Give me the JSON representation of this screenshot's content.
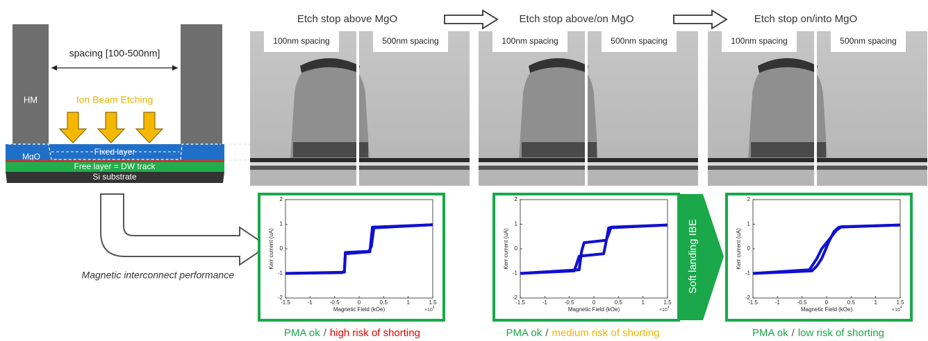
{
  "diagram": {
    "spacing_label": "spacing [100-500nm]",
    "hard_mask": "HM",
    "etch_label": "Ion Beam Etching",
    "fixed_layer": "Fixed layer",
    "mgo": "MgO",
    "free_layer": "Free layer = DW track",
    "substrate": "Si substrate",
    "performance_label": "Magnetic interconnect performance"
  },
  "soft_landing": "Soft landing IBE",
  "columns": [
    {
      "heading": "Etch stop above MgO",
      "images": [
        "100nm spacing",
        "500nm spacing"
      ],
      "plot": {
        "x_label": "Magnetic Field (kOe)",
        "y_label": "Kerr current (uA)",
        "xlim": [
          -1.5,
          1.5
        ],
        "xticks": [
          -1.5,
          -1,
          -0.5,
          0,
          0.5,
          1,
          1.5
        ],
        "ylim": [
          -2,
          2
        ],
        "yticks": [
          -2,
          -1,
          0,
          1,
          2
        ],
        "x_scale": "×10",
        "x_scale_exponent": "4",
        "color": "#1010d0",
        "branches": [
          {
            "x": [
              -1.5,
              -0.35,
              -0.3,
              -0.28,
              0.2,
              0.25,
              0.3,
              1.5
            ],
            "y": [
              -1,
              -0.97,
              -0.9,
              -0.15,
              -0.1,
              0.1,
              0.85,
              0.98
            ]
          },
          {
            "x": [
              -1.5,
              -0.3,
              -0.28,
              0.22,
              0.27,
              1.5
            ],
            "y": [
              -1,
              -0.95,
              -0.2,
              -0.12,
              0.88,
              0.98
            ]
          }
        ]
      },
      "caption": {
        "pma": "PMA ok",
        "separator": "/",
        "risk": "high risk of shorting",
        "risk_color": "#e00000"
      }
    },
    {
      "heading": "Etch stop above/on MgO",
      "images": [
        "100nm spacing",
        "500nm spacing"
      ],
      "plot": {
        "x_label": "Magnetic Field (kOe)",
        "y_label": "Kerr current (uA)",
        "xlim": [
          -1.5,
          1.5
        ],
        "xticks": [
          -1.5,
          -1,
          -0.5,
          0,
          0.5,
          1,
          1.5
        ],
        "ylim": [
          -2,
          2
        ],
        "yticks": [
          -2,
          -1,
          0,
          1,
          2
        ],
        "x_scale": "×10",
        "x_scale_exponent": "4",
        "color": "#1010d0",
        "branches": [
          {
            "x": [
              1.5,
              0.35,
              0.3,
              0.25,
              -0.2,
              -0.25,
              -0.3,
              -1.5
            ],
            "y": [
              0.97,
              0.88,
              0.6,
              0.35,
              0.25,
              -0.1,
              -0.85,
              -1
            ]
          },
          {
            "x": [
              -1.5,
              -0.4,
              -0.35,
              -0.3,
              0.2,
              0.25,
              0.3,
              1.5
            ],
            "y": [
              -1,
              -0.9,
              -0.6,
              -0.3,
              -0.2,
              0.3,
              0.85,
              0.97
            ]
          }
        ]
      },
      "caption": {
        "pma": "PMA ok",
        "separator": "/",
        "risk": "medium risk of shorting",
        "risk_color": "#f0b400"
      }
    },
    {
      "heading": "Etch stop on/into MgO",
      "images": [
        "100nm spacing",
        "500nm spacing"
      ],
      "plot": {
        "x_label": "Magnetic Field (kOe)",
        "y_label": "Kerr current (uA)",
        "xlim": [
          -1.5,
          1.5
        ],
        "xticks": [
          -1.5,
          -1,
          -0.5,
          0,
          0.5,
          1,
          1.5
        ],
        "ylim": [
          -2,
          2
        ],
        "yticks": [
          -2,
          -1,
          0,
          1,
          2
        ],
        "x_scale": "×10",
        "x_scale_exponent": "4",
        "color": "#1010d0",
        "branches": [
          {
            "x": [
              1.5,
              0.3,
              0.2,
              0.1,
              -0.1,
              -0.2,
              -0.35,
              -1.5
            ],
            "y": [
              0.97,
              0.9,
              0.75,
              0.5,
              0,
              -0.4,
              -0.85,
              -1
            ]
          },
          {
            "x": [
              -1.5,
              -0.3,
              -0.2,
              -0.1,
              0.05,
              0.15,
              0.25,
              1.5
            ],
            "y": [
              -1,
              -0.9,
              -0.7,
              -0.4,
              0.3,
              0.7,
              0.88,
              0.97
            ]
          }
        ]
      },
      "caption": {
        "pma": "PMA ok",
        "separator": "/",
        "risk": "low risk of shorting",
        "risk_color": "#1aa84a"
      }
    }
  ]
}
